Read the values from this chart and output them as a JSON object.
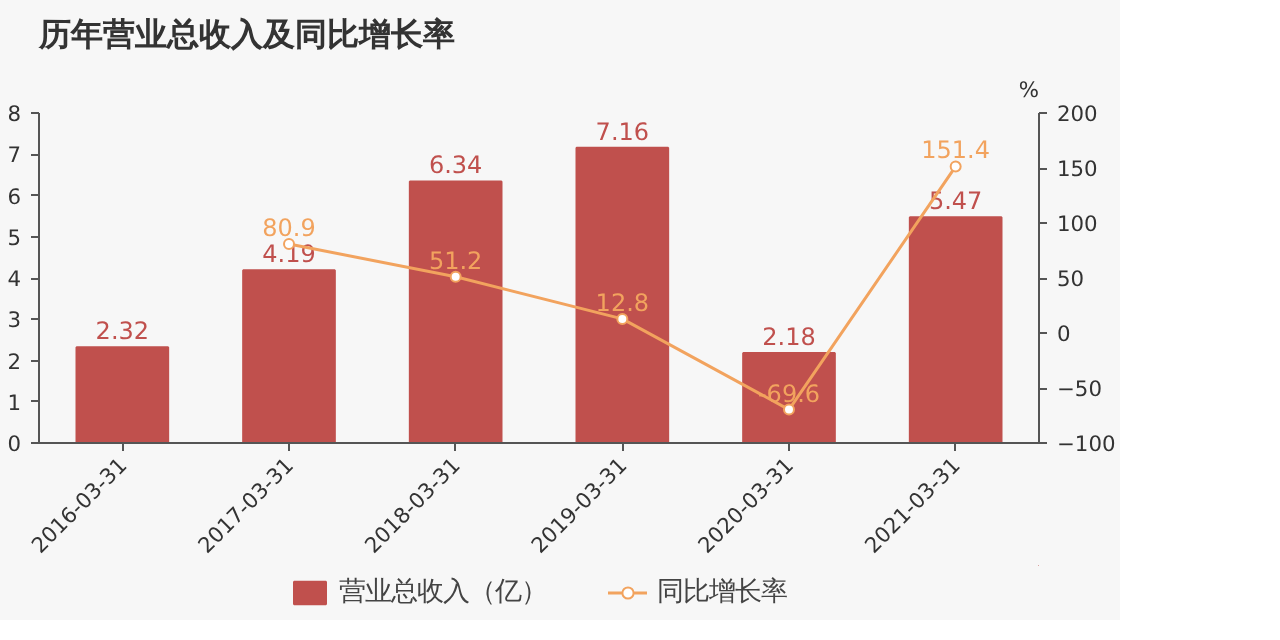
{
  "chart_data": {
    "type": "bar",
    "title": "历年营业总收入及同比增长率",
    "y2label": "%",
    "categories": [
      "2016-03-31",
      "2017-03-31",
      "2018-03-31",
      "2019-03-31",
      "2020-03-31",
      "2021-03-31"
    ],
    "series": [
      {
        "name": "营业总收入（亿）",
        "color": "#c0504d",
        "values": [
          2.32,
          4.19,
          6.34,
          7.16,
          2.18,
          5.47
        ]
      },
      {
        "name": "同比增长率",
        "type": "line",
        "axis": "y2",
        "color": "#f2a35e",
        "marker": "circle",
        "values": [
          null,
          80.9,
          51.2,
          12.8,
          -69.6,
          151.4
        ]
      }
    ],
    "data_labels": true,
    "ylim": [
      0,
      8
    ],
    "yticks": [
      0,
      1,
      2,
      3,
      4,
      5,
      6,
      7,
      8
    ],
    "y2lim": [
      -100,
      200
    ],
    "y2ticks": [
      -100,
      -50,
      0,
      50,
      100,
      150,
      200
    ],
    "grid": false,
    "legend": "bottom"
  }
}
